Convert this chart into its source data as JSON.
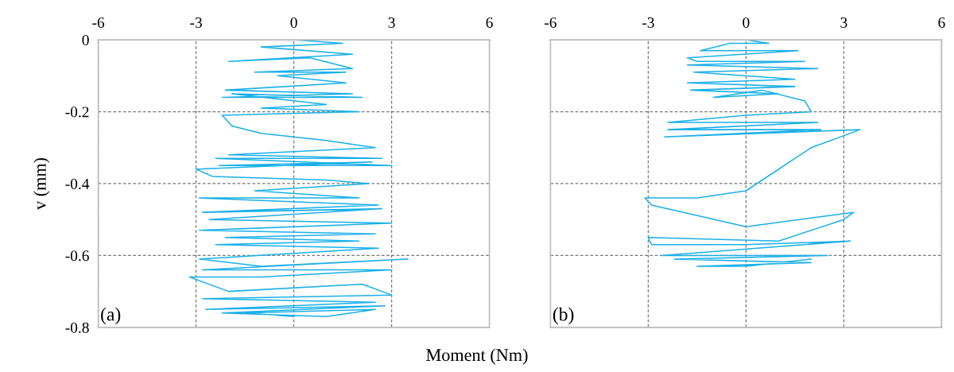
{
  "chart_data": [
    {
      "type": "line",
      "xlabel": "Moment (Nm)",
      "ylabel": "v (mm)",
      "annotations": [
        "(a)"
      ],
      "xlim": [
        -6,
        6
      ],
      "xticks": [
        -6,
        -3,
        0,
        3,
        6
      ],
      "ylim": [
        -0.8,
        0
      ],
      "yticks": [
        -0.8,
        -0.6,
        -0.4,
        -0.2,
        0
      ],
      "grid": true,
      "series": [
        {
          "color": "#1ab0e8",
          "x": [
            0,
            1.5,
            -1,
            1.8,
            -2,
            0.5,
            1.8,
            -1.2,
            1.6,
            -0.5,
            1.6,
            -2.1,
            1.8,
            -2.2,
            2.1,
            -1.9,
            1.0,
            -1,
            2,
            -2.2,
            -1.9,
            -1,
            1,
            2.5,
            -2,
            2.7,
            -2.4,
            3,
            -2.3,
            2.4,
            -3,
            -2.5,
            1,
            2.3,
            -1.2,
            2,
            -2.9,
            2.6,
            -2.8,
            2.7,
            -2.6,
            3,
            -2.9,
            2.5,
            -2.1,
            2.0,
            -2.4,
            2.6,
            -2.9,
            -1,
            3.5,
            -2.8,
            3,
            -1,
            -3.2,
            -2,
            2.1,
            3,
            -2.8,
            2.5,
            -2.7,
            2.8,
            -2.2,
            1,
            2.5,
            -1.5,
            0
          ],
          "values": [
            0,
            -0.01,
            -0.02,
            -0.04,
            -0.06,
            -0.05,
            -0.08,
            -0.09,
            -0.09,
            -0.1,
            -0.12,
            -0.14,
            -0.15,
            -0.16,
            -0.16,
            -0.15,
            -0.18,
            -0.19,
            -0.2,
            -0.21,
            -0.24,
            -0.26,
            -0.28,
            -0.3,
            -0.32,
            -0.33,
            -0.33,
            -0.35,
            -0.35,
            -0.34,
            -0.36,
            -0.38,
            -0.39,
            -0.4,
            -0.42,
            -0.44,
            -0.44,
            -0.46,
            -0.48,
            -0.47,
            -0.5,
            -0.51,
            -0.53,
            -0.54,
            -0.55,
            -0.56,
            -0.57,
            -0.58,
            -0.61,
            -0.63,
            -0.61,
            -0.64,
            -0.64,
            -0.66,
            -0.66,
            -0.7,
            -0.68,
            -0.71,
            -0.72,
            -0.73,
            -0.75,
            -0.74,
            -0.76,
            -0.77,
            -0.75,
            -0.76,
            -0.77
          ]
        }
      ]
    },
    {
      "type": "line",
      "annotations": [
        "(b)"
      ],
      "tick_labels": "x",
      "xlim": [
        -6,
        6
      ],
      "xticks": [
        -6,
        -3,
        0,
        3,
        6
      ],
      "ylim": [
        -0.8,
        0
      ],
      "yticks": [
        -0.8,
        -0.6,
        -0.4,
        -0.2,
        0
      ],
      "grid": true,
      "series": [
        {
          "color": "#1ab0e8",
          "x": [
            0,
            0.7,
            -0.5,
            -1.4,
            1.6,
            -1.8,
            -1.5,
            1.8,
            -1.8,
            2.2,
            -1.6,
            1.5,
            -1.8,
            1.5,
            -1.7,
            1.0,
            -1,
            0.5,
            1.8,
            2,
            0,
            -2.4,
            2.2,
            -2.4,
            2.3,
            -2.5,
            3.5,
            2,
            0,
            -1.5,
            -3.1,
            -2.9,
            0,
            3.3,
            3,
            1,
            -3,
            -2.9,
            0,
            3.2,
            -2.6,
            2.5,
            -2.2,
            2,
            -1.5,
            0,
            2
          ],
          "values": [
            0,
            -0.01,
            -0.01,
            -0.03,
            -0.03,
            -0.05,
            -0.06,
            -0.06,
            -0.07,
            -0.08,
            -0.09,
            -0.11,
            -0.12,
            -0.13,
            -0.14,
            -0.15,
            -0.16,
            -0.14,
            -0.17,
            -0.2,
            -0.21,
            -0.23,
            -0.23,
            -0.25,
            -0.25,
            -0.27,
            -0.25,
            -0.3,
            -0.42,
            -0.44,
            -0.44,
            -0.46,
            -0.52,
            -0.48,
            -0.5,
            -0.56,
            -0.55,
            -0.57,
            -0.57,
            -0.56,
            -0.6,
            -0.6,
            -0.61,
            -0.62,
            -0.63,
            -0.63,
            -0.61
          ]
        }
      ]
    }
  ]
}
